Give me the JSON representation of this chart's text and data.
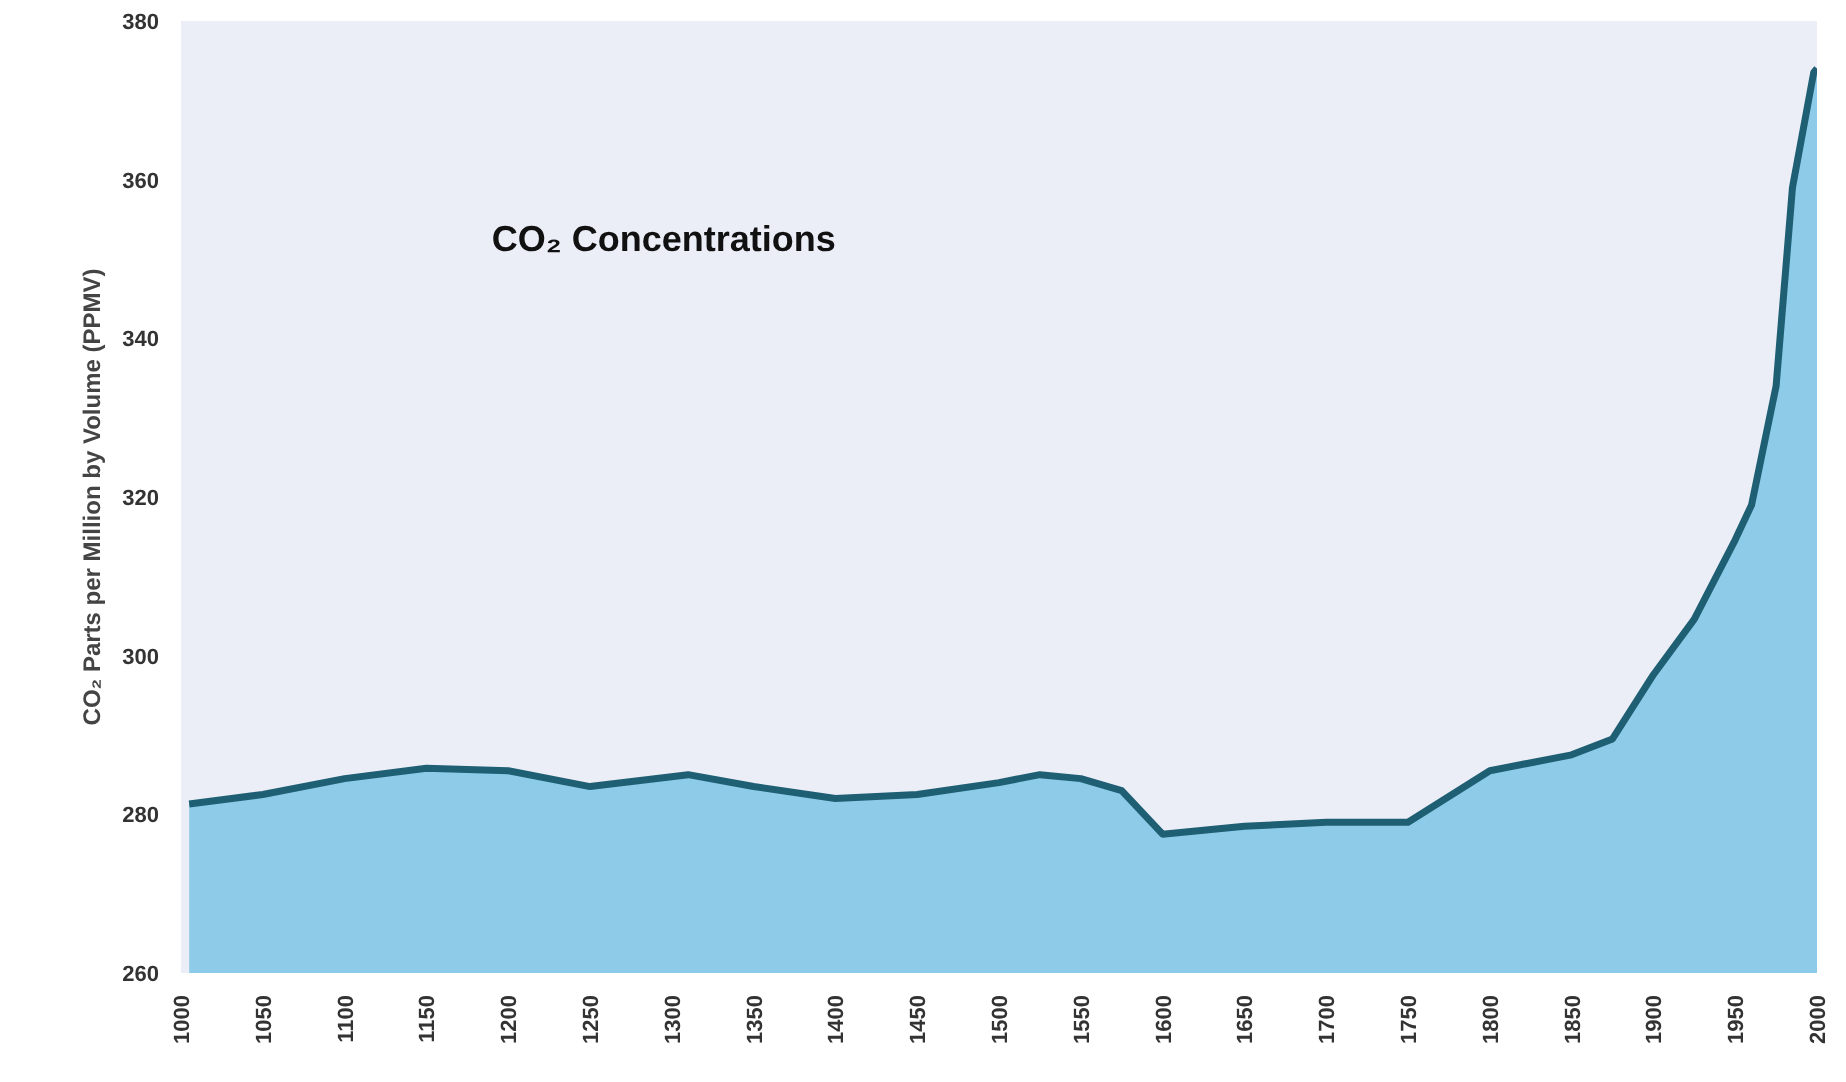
{
  "chart_data": {
    "type": "area",
    "title": "CO₂ Concentrations",
    "ylabel": "CO₂ Parts per Million by Volume (PPMV)",
    "x": [
      1005,
      1050,
      1100,
      1150,
      1200,
      1250,
      1310,
      1350,
      1400,
      1450,
      1500,
      1525,
      1550,
      1575,
      1600,
      1650,
      1700,
      1750,
      1800,
      1850,
      1875,
      1900,
      1925,
      1950,
      1960,
      1975,
      1985,
      1998,
      2000
    ],
    "series": [
      {
        "color": "#1f5f73",
        "values": [
          281.3,
          282.5,
          284.5,
          285.8,
          285.5,
          283.5,
          285,
          283.5,
          282,
          282.5,
          284,
          285,
          284.5,
          283,
          277.5,
          278.5,
          279,
          279,
          285.5,
          287.5,
          289.5,
          297.6,
          304.6,
          314.6,
          319,
          334,
          359,
          373.5,
          374
        ]
      }
    ],
    "xlim": [
      1000,
      2000
    ],
    "ylim": [
      260,
      380
    ],
    "xticks": [
      1000,
      1050,
      1100,
      1150,
      1200,
      1250,
      1300,
      1350,
      1400,
      1450,
      1500,
      1550,
      1600,
      1650,
      1700,
      1750,
      1800,
      1850,
      1900,
      1950,
      2000
    ],
    "yticks": [
      260,
      280,
      300,
      320,
      340,
      360,
      380
    ],
    "grid": false
  }
}
